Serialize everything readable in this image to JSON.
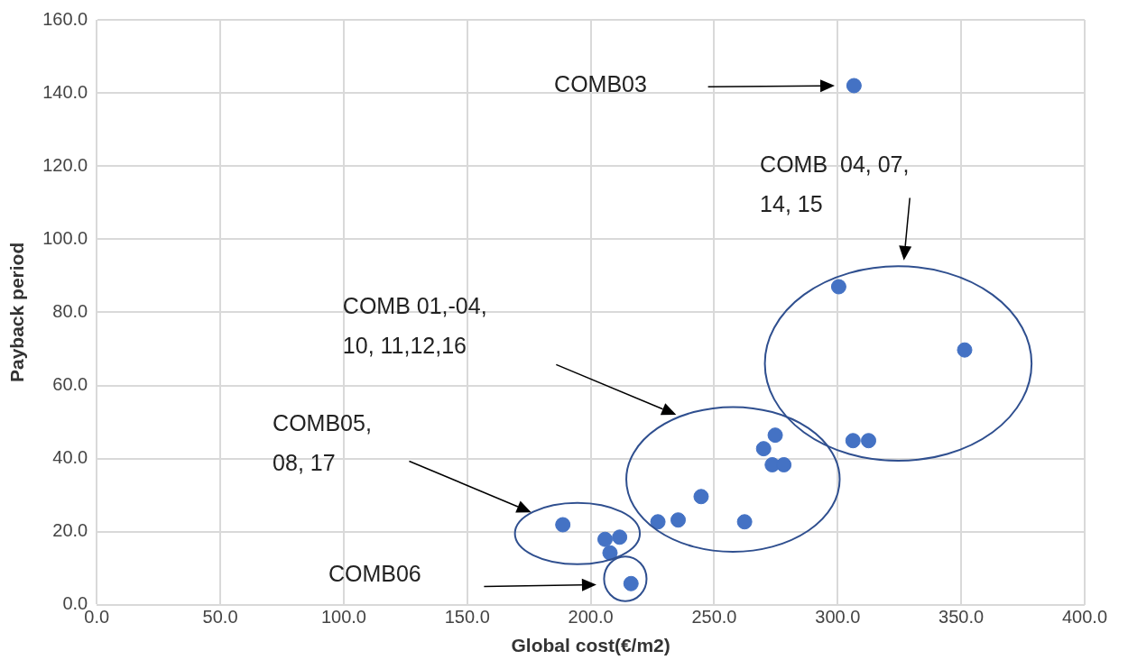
{
  "chart_data": {
    "type": "scatter",
    "xlabel": "Global cost(€/m2)",
    "ylabel": "Payback period",
    "xlim": [
      0,
      400
    ],
    "ylim": [
      0,
      160
    ],
    "xticks": [
      {
        "value": 0,
        "label": "0.0"
      },
      {
        "value": 50,
        "label": "50.0"
      },
      {
        "value": 100,
        "label": "100.0"
      },
      {
        "value": 150,
        "label": "150.0"
      },
      {
        "value": 200,
        "label": "200.0"
      },
      {
        "value": 250,
        "label": "250.0"
      },
      {
        "value": 300,
        "label": "300.0"
      },
      {
        "value": 350,
        "label": "350.0"
      },
      {
        "value": 400,
        "label": "400.0"
      }
    ],
    "yticks": [
      {
        "value": 0,
        "label": "0.0"
      },
      {
        "value": 20,
        "label": "20.0"
      },
      {
        "value": 40,
        "label": "40.0"
      },
      {
        "value": 60,
        "label": "60.0"
      },
      {
        "value": 80,
        "label": "80.0"
      },
      {
        "value": 100,
        "label": "100.0"
      },
      {
        "value": 120,
        "label": "120.0"
      },
      {
        "value": 140,
        "label": "140.0"
      },
      {
        "value": 160,
        "label": "160.0"
      }
    ],
    "grid": true,
    "marker": "circle",
    "series": [
      {
        "color": "#4472c4",
        "x": [
          306.6,
          300.4,
          351.4,
          306.2,
          312.5,
          274.7,
          270,
          273.5,
          278.2,
          244.7,
          235.4,
          227.2,
          262.3,
          188.7,
          211.7,
          205.8,
          207.8,
          216.3
        ],
        "values": [
          142,
          87,
          69.7,
          44.9,
          44.9,
          46.4,
          42.7,
          38.3,
          38.3,
          29.6,
          23.2,
          22.7,
          22.7,
          21.9,
          18.5,
          17.9,
          14.2,
          5.8
        ]
      }
    ],
    "annotations": [
      "COMB03",
      "COMB  04, 07, 14, 15",
      "COMB 01,-04, 10, 11,12,16",
      "COMB05, 08, 17",
      "COMB06"
    ]
  }
}
